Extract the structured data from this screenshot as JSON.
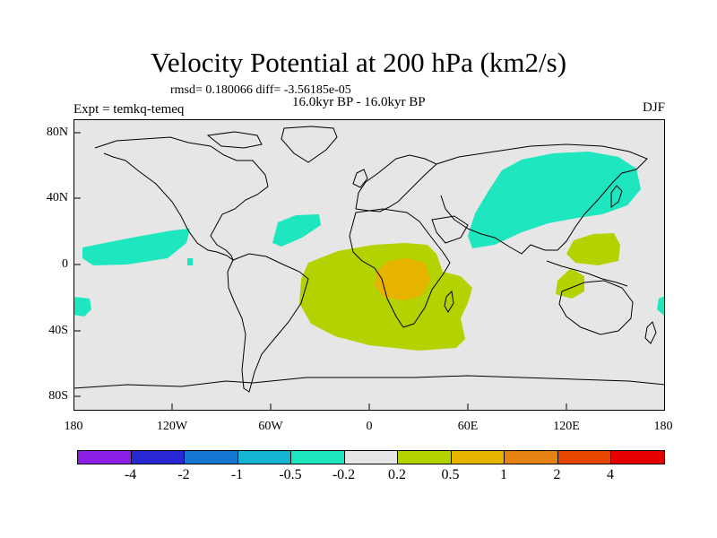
{
  "header": {
    "title": "Velocity Potential at 200 hPa (km2/s)",
    "stats": "rmsd= 0.180066 diff= -3.56185e-05",
    "period": "16.0kyr BP - 16.0kyr BP",
    "experiment": "Expt = temkq-temeq",
    "season": "DJF"
  },
  "axes": {
    "lat_ticks": [
      "80N",
      "40N",
      "0",
      "40S",
      "80S"
    ],
    "lon_ticks": [
      "180",
      "120W",
      "60W",
      "0",
      "60E",
      "120E",
      "180"
    ]
  },
  "colors": {
    "land_background": "#e6e6e6",
    "coastline": "#000000"
  },
  "colorbar": {
    "colors": [
      "#8c1ee6",
      "#2828d2",
      "#1478d2",
      "#14b4d2",
      "#1ee6be",
      "#e6e6e6",
      "#b4d200",
      "#e6b400",
      "#e68214",
      "#e64600",
      "#e60000"
    ],
    "labels": [
      "-4",
      "-2",
      "-1",
      "-0.5",
      "-0.2",
      "0.2",
      "0.5",
      "1",
      "2",
      "4"
    ]
  }
}
